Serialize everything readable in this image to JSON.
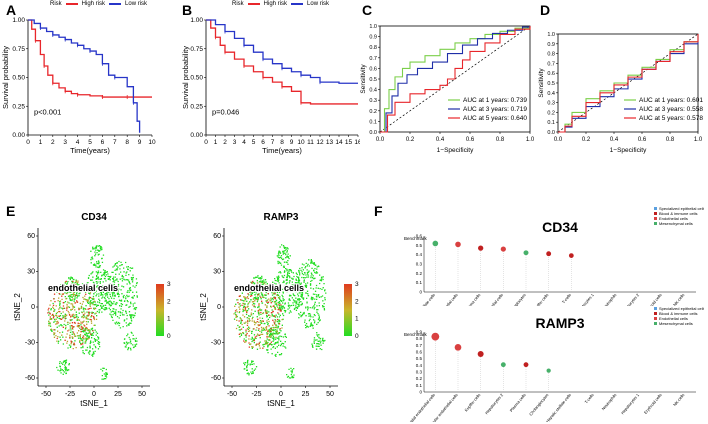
{
  "panel_labels": {
    "A": "A",
    "B": "B",
    "C": "C",
    "D": "D",
    "E": "E",
    "F": "F"
  },
  "colors": {
    "high": "#e8262b",
    "low": "#2735c8",
    "green": "#7ccf4a",
    "dark_blue": "#1f2fa8",
    "red": "#e8262b",
    "tsne_hi": "#e03a1e",
    "tsne_lo": "#22dd22"
  },
  "legend_km": {
    "title": "Risk",
    "high": "High risk",
    "low": "Low risk"
  },
  "chart_data": [
    {
      "id": "A",
      "type": "line",
      "title": "",
      "xlabel": "Time(years)",
      "ylabel": "Survival probability",
      "xlim": [
        0,
        10
      ],
      "ylim": [
        0,
        1
      ],
      "xticks": [
        "0",
        "1",
        "2",
        "3",
        "4",
        "5",
        "6",
        "7",
        "8",
        "9",
        "10"
      ],
      "yticks": [
        "0.00",
        "0.25",
        "0.50",
        "0.75",
        "1.00"
      ],
      "annotation": "p<0.001",
      "series": [
        {
          "name": "High risk",
          "x": [
            0,
            0.3,
            0.6,
            1,
            1.3,
            1.6,
            2,
            2.5,
            3,
            3.5,
            4,
            5,
            6,
            7,
            8,
            10
          ],
          "y": [
            1,
            0.92,
            0.82,
            0.7,
            0.6,
            0.52,
            0.45,
            0.41,
            0.38,
            0.36,
            0.35,
            0.34,
            0.33,
            0.33,
            0.33,
            0.33
          ]
        },
        {
          "name": "Low risk",
          "x": [
            0,
            0.5,
            1,
            1.5,
            2,
            2.5,
            3,
            3.5,
            4,
            4.5,
            5,
            5.5,
            6,
            6.5,
            7,
            8,
            8.5,
            8.8,
            9
          ],
          "y": [
            1,
            0.97,
            0.93,
            0.9,
            0.87,
            0.85,
            0.83,
            0.8,
            0.78,
            0.75,
            0.73,
            0.7,
            0.62,
            0.52,
            0.5,
            0.42,
            0.28,
            0.12,
            0.02
          ]
        }
      ]
    },
    {
      "id": "B",
      "type": "line",
      "xlabel": "Time(years)",
      "ylabel": "Survival probability",
      "xlim": [
        0,
        16
      ],
      "ylim": [
        0,
        1
      ],
      "xticks": [
        "0",
        "1",
        "2",
        "3",
        "4",
        "5",
        "6",
        "7",
        "8",
        "9",
        "10",
        "11",
        "12",
        "13",
        "14",
        "15",
        "16"
      ],
      "yticks": [
        "0.00",
        "0.25",
        "0.50",
        "0.75",
        "1.00"
      ],
      "annotation": "p=0.046",
      "series": [
        {
          "name": "High risk",
          "x": [
            0,
            0.5,
            1,
            1.5,
            2,
            3,
            4,
            5,
            6,
            7,
            8,
            9,
            10,
            11,
            16
          ],
          "y": [
            1,
            0.93,
            0.85,
            0.78,
            0.72,
            0.66,
            0.6,
            0.55,
            0.5,
            0.46,
            0.42,
            0.38,
            0.28,
            0.27,
            0.27
          ]
        },
        {
          "name": "Low risk",
          "x": [
            0,
            1,
            2,
            3,
            4,
            5,
            6,
            7,
            8,
            9,
            10,
            11,
            12,
            14,
            16
          ],
          "y": [
            1,
            0.96,
            0.9,
            0.84,
            0.78,
            0.72,
            0.66,
            0.62,
            0.58,
            0.55,
            0.52,
            0.5,
            0.46,
            0.45,
            0.45
          ]
        }
      ]
    },
    {
      "id": "C",
      "type": "line",
      "xlabel": "1−Specificity",
      "ylabel": "Sensitivity",
      "xlim": [
        0,
        1
      ],
      "ylim": [
        0,
        1
      ],
      "xticks": [
        "0.0",
        "0.2",
        "0.4",
        "0.6",
        "0.8",
        "1.0"
      ],
      "yticks": [
        "0.0",
        "0.1",
        "0.2",
        "0.3",
        "0.4",
        "0.5",
        "0.6",
        "0.7",
        "0.8",
        "0.9",
        "1.0"
      ],
      "legend": [
        "AUC at 1 years: 0.739",
        "AUC at 3 years: 0.719",
        "AUC at 5 years: 0.640"
      ],
      "series": [
        {
          "name": "AUC at 1 years: 0.739",
          "x": [
            0,
            0.03,
            0.06,
            0.1,
            0.15,
            0.2,
            0.3,
            0.4,
            0.5,
            0.6,
            0.7,
            0.8,
            0.9,
            1
          ],
          "y": [
            0,
            0.22,
            0.4,
            0.52,
            0.6,
            0.66,
            0.72,
            0.78,
            0.84,
            0.88,
            0.92,
            0.95,
            0.98,
            1
          ]
        },
        {
          "name": "AUC at 3 years: 0.719",
          "x": [
            0,
            0.04,
            0.08,
            0.12,
            0.18,
            0.25,
            0.35,
            0.45,
            0.55,
            0.65,
            0.75,
            0.85,
            0.95,
            1
          ],
          "y": [
            0,
            0.18,
            0.34,
            0.46,
            0.54,
            0.6,
            0.66,
            0.74,
            0.82,
            0.88,
            0.93,
            0.96,
            0.99,
            1
          ]
        },
        {
          "name": "AUC at 5 years: 0.640",
          "x": [
            0,
            0.05,
            0.1,
            0.2,
            0.3,
            0.4,
            0.45,
            0.5,
            0.55,
            0.6,
            0.7,
            0.8,
            0.9,
            1
          ],
          "y": [
            0,
            0.16,
            0.28,
            0.36,
            0.4,
            0.44,
            0.5,
            0.6,
            0.68,
            0.76,
            0.84,
            0.92,
            0.97,
            1
          ]
        }
      ]
    },
    {
      "id": "D",
      "type": "line",
      "xlabel": "1−Specificity",
      "ylabel": "Sensitivity",
      "xlim": [
        0,
        1
      ],
      "ylim": [
        0,
        1
      ],
      "xticks": [
        "0.0",
        "0.2",
        "0.4",
        "0.6",
        "0.8",
        "1.0"
      ],
      "yticks": [
        "0.0",
        "0.1",
        "0.2",
        "0.3",
        "0.4",
        "0.5",
        "0.6",
        "0.7",
        "0.8",
        "0.9",
        "1.0"
      ],
      "legend": [
        "AUC at 1 years: 0.601",
        "AUC at 3 years: 0.558",
        "AUC at 5 years: 0.578"
      ],
      "series": [
        {
          "name": "AUC at 1 years: 0.601",
          "x": [
            0,
            0.05,
            0.1,
            0.2,
            0.3,
            0.4,
            0.5,
            0.6,
            0.7,
            0.8,
            0.9,
            1
          ],
          "y": [
            0,
            0.08,
            0.2,
            0.34,
            0.42,
            0.5,
            0.58,
            0.66,
            0.74,
            0.84,
            0.92,
            1
          ]
        },
        {
          "name": "AUC at 3 years: 0.558",
          "x": [
            0,
            0.05,
            0.1,
            0.2,
            0.3,
            0.4,
            0.5,
            0.6,
            0.7,
            0.8,
            0.9,
            1
          ],
          "y": [
            0,
            0.05,
            0.14,
            0.26,
            0.36,
            0.44,
            0.54,
            0.64,
            0.72,
            0.8,
            0.9,
            1
          ]
        },
        {
          "name": "AUC at 5 years: 0.578",
          "x": [
            0,
            0.05,
            0.1,
            0.2,
            0.3,
            0.4,
            0.5,
            0.6,
            0.7,
            0.8,
            0.9,
            1
          ],
          "y": [
            0,
            0.06,
            0.16,
            0.3,
            0.4,
            0.48,
            0.56,
            0.64,
            0.72,
            0.82,
            0.92,
            1
          ]
        }
      ]
    },
    {
      "id": "E1",
      "type": "scatter",
      "title": "CD34",
      "xlabel": "tSNE_1",
      "ylabel": "tSNE_2",
      "xticks": [
        "-50",
        "-25",
        "0",
        "25",
        "50"
      ],
      "yticks": [
        "60",
        "30",
        "0",
        "-30",
        "-60"
      ],
      "annotation": "endothelial cells",
      "colorbar": [
        "0",
        "1",
        "2",
        "3"
      ]
    },
    {
      "id": "E2",
      "type": "scatter",
      "title": "RAMP3",
      "xlabel": "tSNE_1",
      "ylabel": "tSNE_2",
      "xticks": [
        "-50",
        "-25",
        "0",
        "25",
        "50"
      ],
      "yticks": [
        "60",
        "30",
        "0",
        "-30",
        "-60"
      ],
      "annotation": "endothelial cells",
      "colorbar": [
        "0",
        "1",
        "2",
        "3"
      ]
    },
    {
      "id": "F1",
      "type": "scatter",
      "title": "CD34",
      "ylabel": "Benchmark",
      "yticks": [
        "0.6",
        "0.5",
        "0.4",
        "0.3",
        "0.2",
        "0.1",
        "0"
      ],
      "legend": [
        "Specialized epithelial cells",
        "Blood & immune cells",
        "Endothelial cells",
        "Mesenchymal cells"
      ],
      "categories": [
        "Hepatic stellate cells",
        "Vascular endothelial cells",
        "Plasma cells",
        "Sinusoidal endothelial cells",
        "Cholangiocytes",
        "Kupffer cells",
        "T-cells",
        "Hepatocytes 1",
        "Neutrophils",
        "Hepatocytes 2",
        "Erythroid cells",
        "NK-cells"
      ],
      "values": [
        0.52,
        0.51,
        0.47,
        0.46,
        0.42,
        0.41,
        0.39,
        0,
        0,
        0,
        0,
        0
      ]
    },
    {
      "id": "F2",
      "type": "scatter",
      "title": "RAMP3",
      "ylabel": "Benchmark",
      "yticks": [
        "0.9",
        "0.8",
        "0.7",
        "0.6",
        "0.5",
        "0.4",
        "0.3",
        "0.2",
        "0.1",
        "0"
      ],
      "legend": [
        "Specialized epithelial cells",
        "Blood & immune cells",
        "Endothelial cells",
        "Mesenchymal cells"
      ],
      "categories": [
        "Sinusoidal endothelial cells",
        "Vascular endothelial cells",
        "Kupffer cells",
        "Hepatocytes 2",
        "Plasma cells",
        "Cholangiocytes",
        "Hepatic stellate cells",
        "T-cells",
        "Neutrophils",
        "Hepatocytes 1",
        "Erythroid cells",
        "NK-cells"
      ],
      "values": [
        0.83,
        0.67,
        0.57,
        0.41,
        0.41,
        0.32,
        0,
        0,
        0,
        0,
        0,
        0
      ]
    }
  ]
}
